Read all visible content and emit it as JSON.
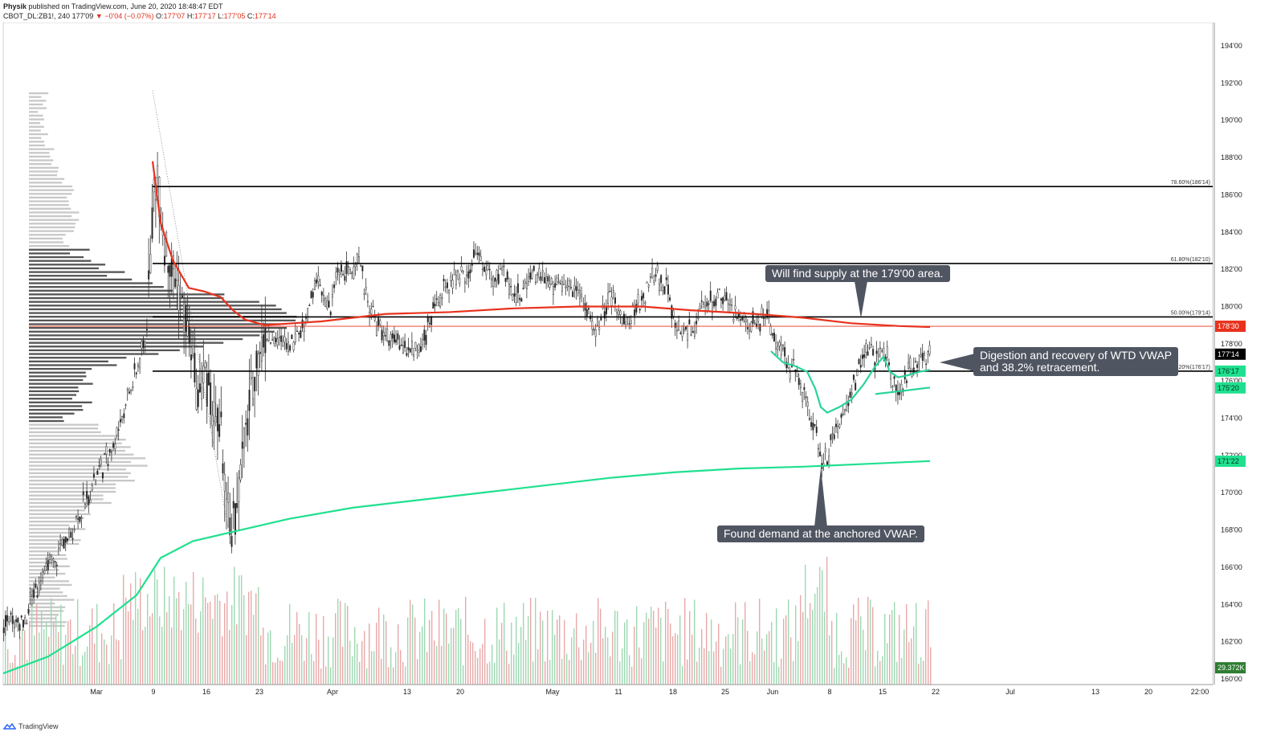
{
  "header": {
    "author": "Physik",
    "published_text": "published on TradingView.com, June 20, 2020 18:48:47 EDT",
    "symbol": "CBOT_DL:ZB1!, 240",
    "last": "177'09",
    "change_arrow": "▼",
    "change": "−0'04 (−0.07%)",
    "o_label": "O:",
    "o_value": "177'07",
    "h_label": "H:",
    "h_value": "177'17",
    "l_label": "L:",
    "l_value": "177'05",
    "c_label": "C:",
    "c_value": "177'14"
  },
  "footer": {
    "brand": "TradingView"
  },
  "annotations": {
    "supply": "Will find supply at the 179'00 area.",
    "digestion_line1": "Digestion and recovery of WTD VWAP",
    "digestion_line2": "and 38.2% retracement.",
    "demand": "Found demand at the anchored VWAP."
  },
  "colors": {
    "up": "#26a69a",
    "down": "#222222",
    "vwap_red": "#e8321d",
    "vwap_green": "#1fe08f",
    "wtd_vwap": "#2bd49b",
    "profile_dark": "#555555",
    "profile_light": "#c8c8c8",
    "vol_up": "#9fd8b3",
    "vol_down": "#e8a9a9",
    "fib_line": "#000000"
  },
  "chart_data": {
    "type": "candlestick",
    "title": "",
    "price_axis": {
      "labels": [
        "194'00",
        "192'00",
        "190'00",
        "188'00",
        "186'00",
        "184'00",
        "182'00",
        "180'00",
        "178'00",
        "176'00",
        "174'00",
        "172'00",
        "170'00",
        "168'00",
        "166'00",
        "164'00",
        "162'00",
        "160'00"
      ],
      "ylim": [
        160,
        195
      ]
    },
    "time_axis": {
      "labels": [
        "Mar",
        "9",
        "16",
        "23",
        "Apr",
        "13",
        "20",
        "May",
        "11",
        "18",
        "25",
        "Jun",
        "8",
        "15",
        "22",
        "Jul",
        "13",
        "20",
        "22:00"
      ]
    },
    "fib_levels": [
      {
        "label": "78.60%(186'14)",
        "value": 186.44
      },
      {
        "label": "61.80%(182'10)",
        "value": 182.31
      },
      {
        "label": "50.00%(179'14)",
        "value": 179.44
      },
      {
        "label": "38.20%(176'17)",
        "value": 176.53
      }
    ],
    "price_tags": [
      {
        "label": "178'30",
        "value": 178.94,
        "color": "#e8321d"
      },
      {
        "label": "177'14",
        "value": 177.44,
        "color": "#000000"
      },
      {
        "label": "176'17",
        "value": 176.53,
        "color": "#1fe08f"
      },
      {
        "label": "175'20",
        "value": 175.63,
        "color": "#1fe08f"
      },
      {
        "label": "171'22",
        "value": 171.69,
        "color": "#1fe08f"
      },
      {
        "label": "29.372K",
        "value": 160.6,
        "color": "#2e7d32"
      }
    ],
    "red_hline": {
      "value": 178.94
    },
    "price_path": [
      [
        0,
        163.0
      ],
      [
        30,
        163.2
      ],
      [
        50,
        165.5
      ],
      [
        80,
        167.2
      ],
      [
        110,
        170.0
      ],
      [
        140,
        172.5
      ],
      [
        165,
        176.0
      ],
      [
        180,
        178.0
      ],
      [
        190,
        185.5
      ],
      [
        195,
        187.0
      ],
      [
        205,
        183.0
      ],
      [
        220,
        181.0
      ],
      [
        235,
        178.5
      ],
      [
        245,
        175.0
      ],
      [
        255,
        176.5
      ],
      [
        265,
        174.0
      ],
      [
        275,
        173.0
      ],
      [
        285,
        168.0
      ],
      [
        292,
        168.5
      ],
      [
        300,
        172.0
      ],
      [
        310,
        174.5
      ],
      [
        320,
        177.5
      ],
      [
        335,
        178.5
      ],
      [
        350,
        178.0
      ],
      [
        365,
        178.2
      ],
      [
        378,
        179.0
      ],
      [
        395,
        181.5
      ],
      [
        410,
        179.5
      ],
      [
        420,
        182.0
      ],
      [
        432,
        181.8
      ],
      [
        445,
        182.5
      ],
      [
        460,
        180.0
      ],
      [
        475,
        178.5
      ],
      [
        495,
        178.0
      ],
      [
        515,
        177.5
      ],
      [
        530,
        178.5
      ],
      [
        545,
        180.5
      ],
      [
        565,
        181.5
      ],
      [
        580,
        181.8
      ],
      [
        595,
        182.8
      ],
      [
        610,
        181.5
      ],
      [
        625,
        181.8
      ],
      [
        645,
        180.5
      ],
      [
        665,
        182.0
      ],
      [
        685,
        181.0
      ],
      [
        705,
        181.5
      ],
      [
        725,
        180.5
      ],
      [
        740,
        178.5
      ],
      [
        760,
        180.5
      ],
      [
        780,
        179.0
      ],
      [
        800,
        180.5
      ],
      [
        815,
        181.8
      ],
      [
        830,
        181.0
      ],
      [
        845,
        178.5
      ],
      [
        860,
        178.8
      ],
      [
        880,
        180.2
      ],
      [
        900,
        180.6
      ],
      [
        915,
        179.5
      ],
      [
        935,
        179.0
      ],
      [
        955,
        179.6
      ],
      [
        965,
        178.0
      ],
      [
        980,
        177.0
      ],
      [
        995,
        176.0
      ],
      [
        1005,
        174.5
      ],
      [
        1015,
        173.5
      ],
      [
        1022,
        171.5
      ],
      [
        1030,
        172.0
      ],
      [
        1040,
        173.5
      ],
      [
        1055,
        174.8
      ],
      [
        1065,
        176.0
      ],
      [
        1078,
        178.0
      ],
      [
        1090,
        177.0
      ],
      [
        1100,
        178.0
      ],
      [
        1110,
        176.0
      ],
      [
        1120,
        175.5
      ],
      [
        1132,
        176.5
      ],
      [
        1145,
        177.0
      ],
      [
        1158,
        177.4
      ]
    ],
    "series": [
      {
        "name": "",
        "path": [
          [
            190,
            187.8
          ],
          [
            200,
            184.5
          ],
          [
            215,
            182.5
          ],
          [
            235,
            181.0
          ],
          [
            255,
            180.8
          ],
          [
            275,
            180.5
          ],
          [
            290,
            179.8
          ],
          [
            305,
            179.3
          ],
          [
            330,
            179.0
          ],
          [
            400,
            179.2
          ],
          [
            480,
            179.6
          ],
          [
            560,
            179.7
          ],
          [
            640,
            179.9
          ],
          [
            720,
            180.0
          ],
          [
            800,
            180.0
          ],
          [
            860,
            179.8
          ],
          [
            940,
            179.6
          ],
          [
            1000,
            179.4
          ],
          [
            1060,
            179.1
          ],
          [
            1120,
            178.95
          ],
          [
            1158,
            178.9
          ]
        ]
      },
      {
        "name": "",
        "path": [
          [
            4,
            160.3
          ],
          [
            60,
            161.2
          ],
          [
            120,
            162.8
          ],
          [
            170,
            164.5
          ],
          [
            200,
            166.5
          ],
          [
            240,
            167.4
          ],
          [
            300,
            168.0
          ],
          [
            360,
            168.6
          ],
          [
            440,
            169.2
          ],
          [
            520,
            169.6
          ],
          [
            600,
            170.0
          ],
          [
            680,
            170.4
          ],
          [
            760,
            170.8
          ],
          [
            840,
            171.1
          ],
          [
            920,
            171.3
          ],
          [
            1000,
            171.4
          ],
          [
            1080,
            171.55
          ],
          [
            1158,
            171.7
          ]
        ]
      },
      {
        "name": "",
        "path": [
          [
            960,
            177.6
          ],
          [
            975,
            177.0
          ],
          [
            990,
            176.8
          ],
          [
            1005,
            176.5
          ],
          [
            1015,
            175.6
          ],
          [
            1022,
            174.6
          ],
          [
            1030,
            174.3
          ],
          [
            1045,
            174.6
          ],
          [
            1060,
            175.0
          ],
          [
            1075,
            175.8
          ],
          [
            1090,
            176.8
          ],
          [
            1100,
            177.3
          ],
          [
            1108,
            176.5
          ],
          [
            1118,
            176.2
          ],
          [
            1130,
            176.3
          ],
          [
            1145,
            176.5
          ],
          [
            1158,
            176.6
          ]
        ]
      },
      {
        "name": "",
        "path": [
          [
            1090,
            175.3
          ],
          [
            1120,
            175.45
          ],
          [
            1158,
            175.65
          ]
        ]
      }
    ]
  }
}
